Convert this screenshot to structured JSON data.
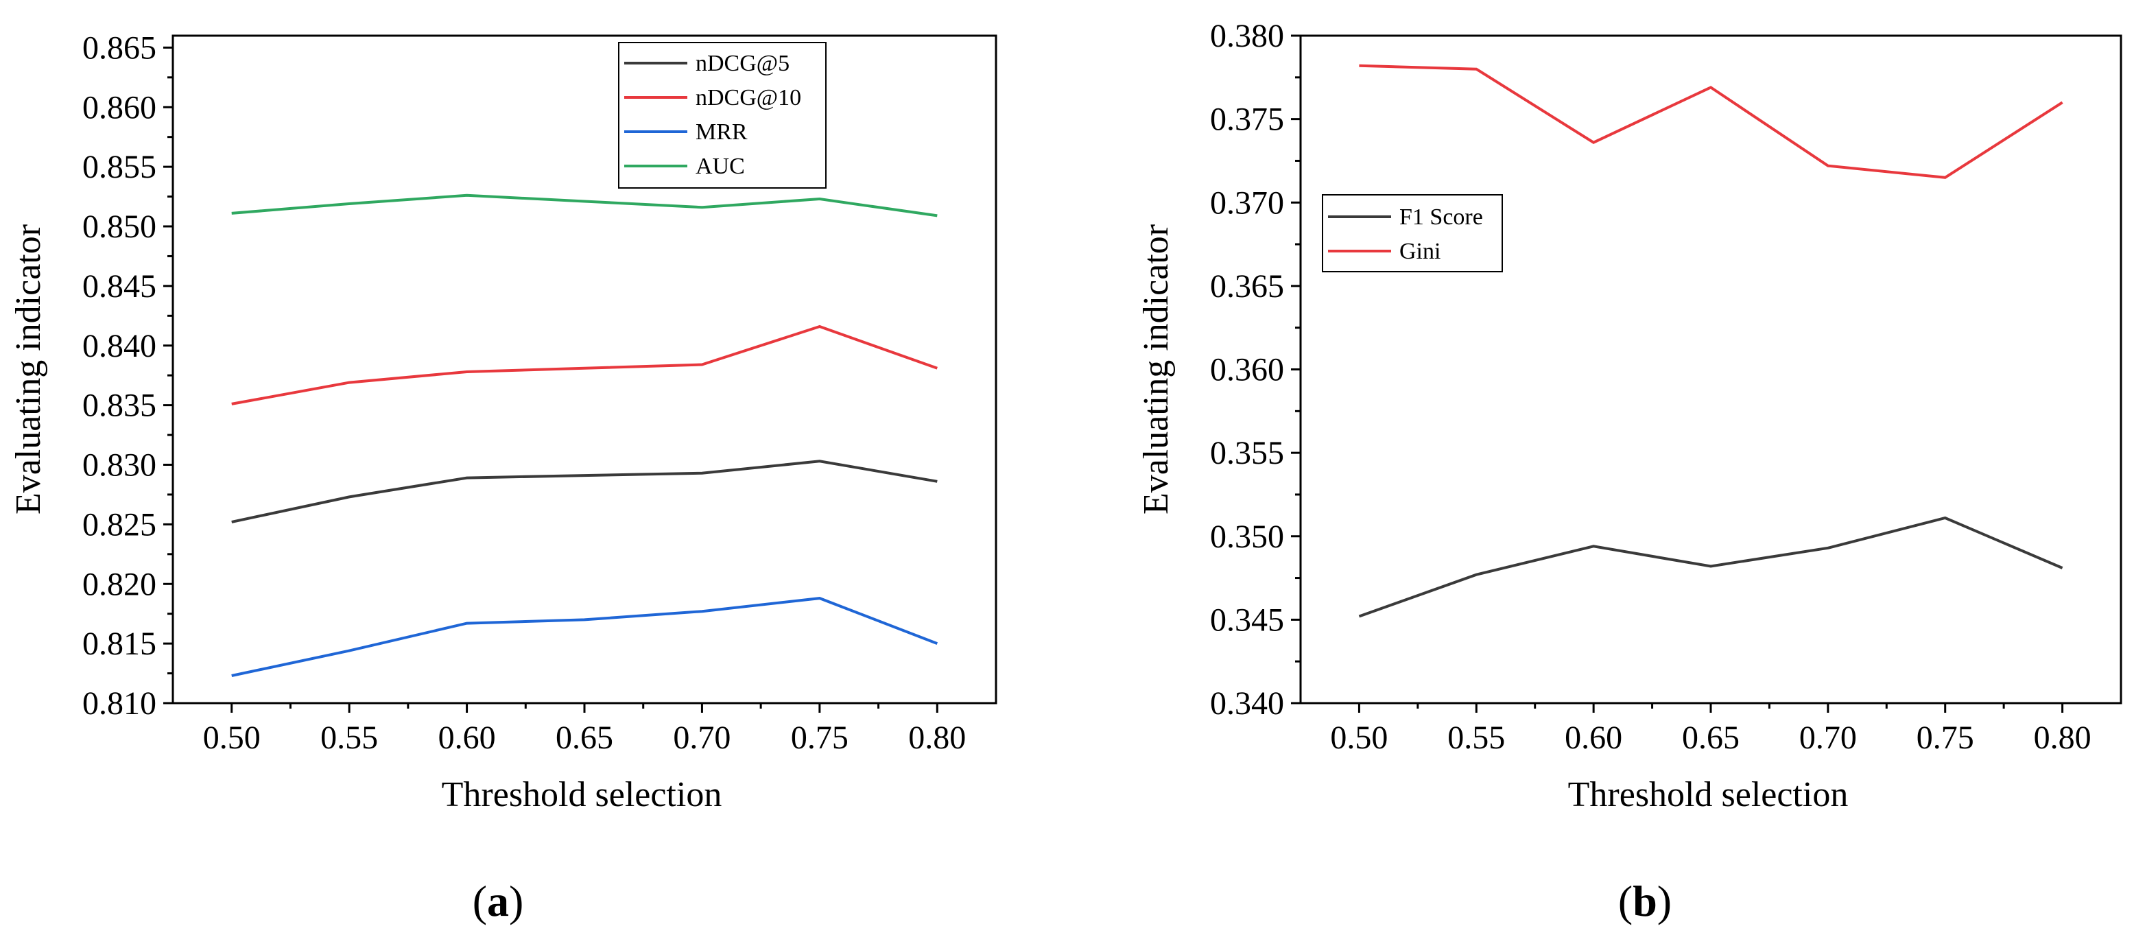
{
  "chart_data": [
    {
      "type": "line",
      "panel_label": {
        "open": "(",
        "letter": "a",
        "close": ")"
      },
      "x": [
        0.5,
        0.55,
        0.6,
        0.65,
        0.7,
        0.75,
        0.8
      ],
      "x_tick_labels": [
        "0.50",
        "0.55",
        "0.60",
        "0.65",
        "0.70",
        "0.75",
        "0.80"
      ],
      "xlim": [
        0.475,
        0.825
      ],
      "ylim": [
        0.81,
        0.866
      ],
      "y_ticks": [
        0.81,
        0.815,
        0.82,
        0.825,
        0.83,
        0.835,
        0.84,
        0.845,
        0.85,
        0.855,
        0.86,
        0.865
      ],
      "y_tick_labels": [
        "0.810",
        "0.815",
        "0.820",
        "0.825",
        "0.830",
        "0.835",
        "0.840",
        "0.845",
        "0.850",
        "0.855",
        "0.860",
        "0.865"
      ],
      "xlabel": "Threshold selection",
      "ylabel": "Evaluating indicator",
      "legend_position": "top-right",
      "series": [
        {
          "name": "nDCG@5",
          "color": "#3a3a3a",
          "values": [
            0.8252,
            0.8273,
            0.8289,
            0.8291,
            0.8293,
            0.8303,
            0.8286
          ]
        },
        {
          "name": "nDCG@10",
          "color": "#e8383d",
          "values": [
            0.8351,
            0.8369,
            0.8378,
            0.8381,
            0.8384,
            0.8416,
            0.8381
          ]
        },
        {
          "name": "MRR",
          "color": "#1f66d6",
          "values": [
            0.8123,
            0.8144,
            0.8167,
            0.817,
            0.8177,
            0.8188,
            0.815
          ]
        },
        {
          "name": "AUC",
          "color": "#2fa860",
          "values": [
            0.8511,
            0.8519,
            0.8526,
            0.8521,
            0.8516,
            0.8523,
            0.8509
          ]
        }
      ]
    },
    {
      "type": "line",
      "panel_label": {
        "open": "(",
        "letter": "b",
        "close": ")"
      },
      "x": [
        0.5,
        0.55,
        0.6,
        0.65,
        0.7,
        0.75,
        0.8
      ],
      "x_tick_labels": [
        "0.50",
        "0.55",
        "0.60",
        "0.65",
        "0.70",
        "0.75",
        "0.80"
      ],
      "xlim": [
        0.475,
        0.825
      ],
      "ylim": [
        0.34,
        0.38
      ],
      "y_ticks": [
        0.34,
        0.345,
        0.35,
        0.355,
        0.36,
        0.365,
        0.37,
        0.375,
        0.38
      ],
      "y_tick_labels": [
        "0.340",
        "0.345",
        "0.350",
        "0.355",
        "0.360",
        "0.365",
        "0.370",
        "0.375",
        "0.380"
      ],
      "xlabel": "Threshold selection",
      "ylabel": "Evaluating indicator",
      "legend_position": "upper-left",
      "series": [
        {
          "name": "F1 Score",
          "color": "#3a3a3a",
          "values": [
            0.3452,
            0.3477,
            0.3494,
            0.3482,
            0.3493,
            0.3511,
            0.3481
          ]
        },
        {
          "name": "Gini",
          "color": "#e8383d",
          "values": [
            0.3782,
            0.378,
            0.3736,
            0.3769,
            0.3722,
            0.3715,
            0.376
          ]
        }
      ]
    }
  ]
}
